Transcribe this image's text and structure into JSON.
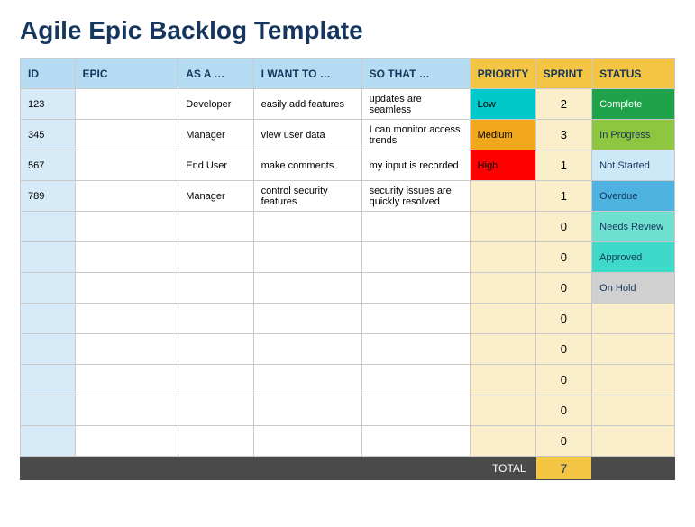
{
  "title": "Agile Epic Backlog Template",
  "columns": [
    "ID",
    "EPIC",
    "AS A …",
    "I WANT TO …",
    "SO THAT …",
    "PRIORITY",
    "SPRINT",
    "STATUS"
  ],
  "header_colors": {
    "blue": "#b5dcf2",
    "yellow": "#f4c542"
  },
  "id_col_bg": "#d6ebf7",
  "pale_yellow_bg": "#faeecb",
  "rows": [
    {
      "id": "123",
      "epic": "",
      "as_a": "Developer",
      "i_want": "easily add features",
      "so_that": "updates are seamless",
      "priority": "Low",
      "priority_bg": "#00c9c9",
      "sprint": "2",
      "status": "Complete",
      "status_bg": "#1fa34a",
      "status_color": "#ffffff"
    },
    {
      "id": "345",
      "epic": "",
      "as_a": "Manager",
      "i_want": "view user data",
      "so_that": "I can monitor access trends",
      "priority": "Medium",
      "priority_bg": "#f2a81d",
      "sprint": "3",
      "status": "In Progress",
      "status_bg": "#8fc640",
      "status_color": "#17365d"
    },
    {
      "id": "567",
      "epic": "",
      "as_a": "End User",
      "i_want": "make comments",
      "so_that": "my input is recorded",
      "priority": "High",
      "priority_bg": "#ff0000",
      "sprint": "1",
      "status": "Not Started",
      "status_bg": "#cde8f7",
      "status_color": "#17365d"
    },
    {
      "id": "789",
      "epic": "",
      "as_a": "Manager",
      "i_want": "control security features",
      "so_that": "security issues are quickly resolved",
      "priority": "",
      "priority_bg": "#faeecb",
      "sprint": "1",
      "status": "Overdue",
      "status_bg": "#4eb3e0",
      "status_color": "#17365d"
    },
    {
      "id": "",
      "epic": "",
      "as_a": "",
      "i_want": "",
      "so_that": "",
      "priority": "",
      "priority_bg": "#faeecb",
      "sprint": "0",
      "status": "Needs Review",
      "status_bg": "#6ee0d0",
      "status_color": "#17365d"
    },
    {
      "id": "",
      "epic": "",
      "as_a": "",
      "i_want": "",
      "so_that": "",
      "priority": "",
      "priority_bg": "#faeecb",
      "sprint": "0",
      "status": "Approved",
      "status_bg": "#3fd9c9",
      "status_color": "#17365d"
    },
    {
      "id": "",
      "epic": "",
      "as_a": "",
      "i_want": "",
      "so_that": "",
      "priority": "",
      "priority_bg": "#faeecb",
      "sprint": "0",
      "status": "On Hold",
      "status_bg": "#d0d0d0",
      "status_color": "#17365d"
    },
    {
      "id": "",
      "epic": "",
      "as_a": "",
      "i_want": "",
      "so_that": "",
      "priority": "",
      "priority_bg": "#faeecb",
      "sprint": "0",
      "status": "",
      "status_bg": "#faeecb",
      "status_color": "#17365d"
    },
    {
      "id": "",
      "epic": "",
      "as_a": "",
      "i_want": "",
      "so_that": "",
      "priority": "",
      "priority_bg": "#faeecb",
      "sprint": "0",
      "status": "",
      "status_bg": "#faeecb",
      "status_color": "#17365d"
    },
    {
      "id": "",
      "epic": "",
      "as_a": "",
      "i_want": "",
      "so_that": "",
      "priority": "",
      "priority_bg": "#faeecb",
      "sprint": "0",
      "status": "",
      "status_bg": "#faeecb",
      "status_color": "#17365d"
    },
    {
      "id": "",
      "epic": "",
      "as_a": "",
      "i_want": "",
      "so_that": "",
      "priority": "",
      "priority_bg": "#faeecb",
      "sprint": "0",
      "status": "",
      "status_bg": "#faeecb",
      "status_color": "#17365d"
    },
    {
      "id": "",
      "epic": "",
      "as_a": "",
      "i_want": "",
      "so_that": "",
      "priority": "",
      "priority_bg": "#faeecb",
      "sprint": "0",
      "status": "",
      "status_bg": "#faeecb",
      "status_color": "#17365d"
    }
  ],
  "footer": {
    "label": "TOTAL",
    "value": "7"
  },
  "footer_bg": "#4a4a4a",
  "footer_val_bg": "#f4c542"
}
